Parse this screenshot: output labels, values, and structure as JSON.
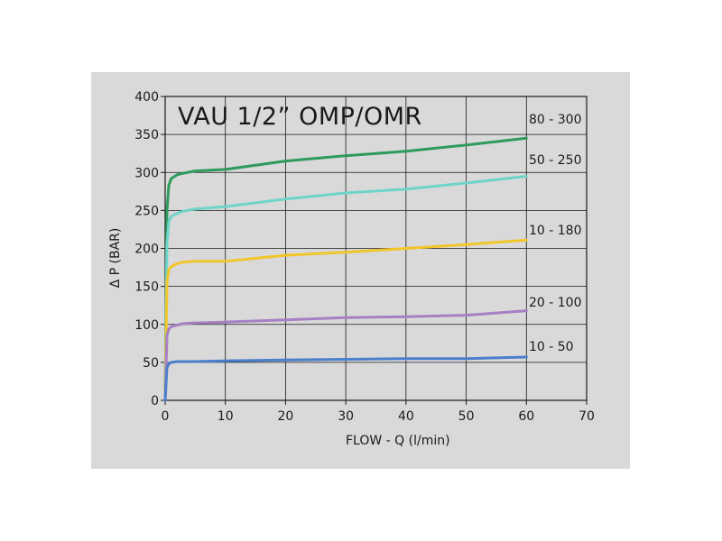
{
  "chart_data": {
    "type": "line",
    "title": "VAU 1/2” OMP/OMR",
    "xlabel": "FLOW - Q (l/min)",
    "ylabel": "Δ  P (BAR)",
    "xlim": [
      0,
      70
    ],
    "ylim": [
      0,
      400
    ],
    "xticks": [
      "0",
      "10",
      "20",
      "30",
      "40",
      "50",
      "60",
      "70"
    ],
    "yticks": [
      "0",
      "50",
      "100",
      "150",
      "200",
      "250",
      "300",
      "350",
      "400"
    ],
    "grid": true,
    "series": [
      {
        "name": "80 - 300",
        "color": "#2e9a5c",
        "x": [
          0,
          0.3,
          0.6,
          1,
          2,
          3,
          5,
          10,
          20,
          30,
          40,
          50,
          60
        ],
        "y": [
          0,
          250,
          283,
          292,
          297,
          299,
          302,
          304,
          315,
          322,
          328,
          336,
          345
        ]
      },
      {
        "name": "50 - 250",
        "color": "#6ed4c8",
        "x": [
          0,
          0.3,
          0.6,
          1,
          2,
          3,
          5,
          10,
          20,
          30,
          40,
          50,
          60
        ],
        "y": [
          0,
          205,
          235,
          242,
          246,
          249,
          252,
          255,
          265,
          273,
          278,
          286,
          295
        ]
      },
      {
        "name": "10 - 180",
        "color": "#f2c62a",
        "x": [
          0,
          0.3,
          0.6,
          1,
          2,
          3,
          5,
          10,
          20,
          30,
          40,
          50,
          60
        ],
        "y": [
          0,
          155,
          172,
          176,
          180,
          182,
          183,
          183,
          191,
          195,
          200,
          205,
          211
        ]
      },
      {
        "name": "20 - 100",
        "color": "#a77fc4",
        "x": [
          0,
          0.3,
          0.6,
          1,
          2,
          3,
          5,
          10,
          20,
          30,
          40,
          50,
          60
        ],
        "y": [
          0,
          85,
          94,
          97,
          99,
          101,
          102,
          103,
          106,
          109,
          110,
          112,
          118
        ]
      },
      {
        "name": "10 - 50",
        "color": "#4a7fcc",
        "x": [
          0,
          0.3,
          0.6,
          1,
          2,
          3,
          5,
          10,
          20,
          30,
          40,
          50,
          60
        ],
        "y": [
          0,
          43,
          48,
          50,
          51,
          51,
          51,
          52,
          53,
          54,
          55,
          55,
          57
        ]
      }
    ]
  }
}
